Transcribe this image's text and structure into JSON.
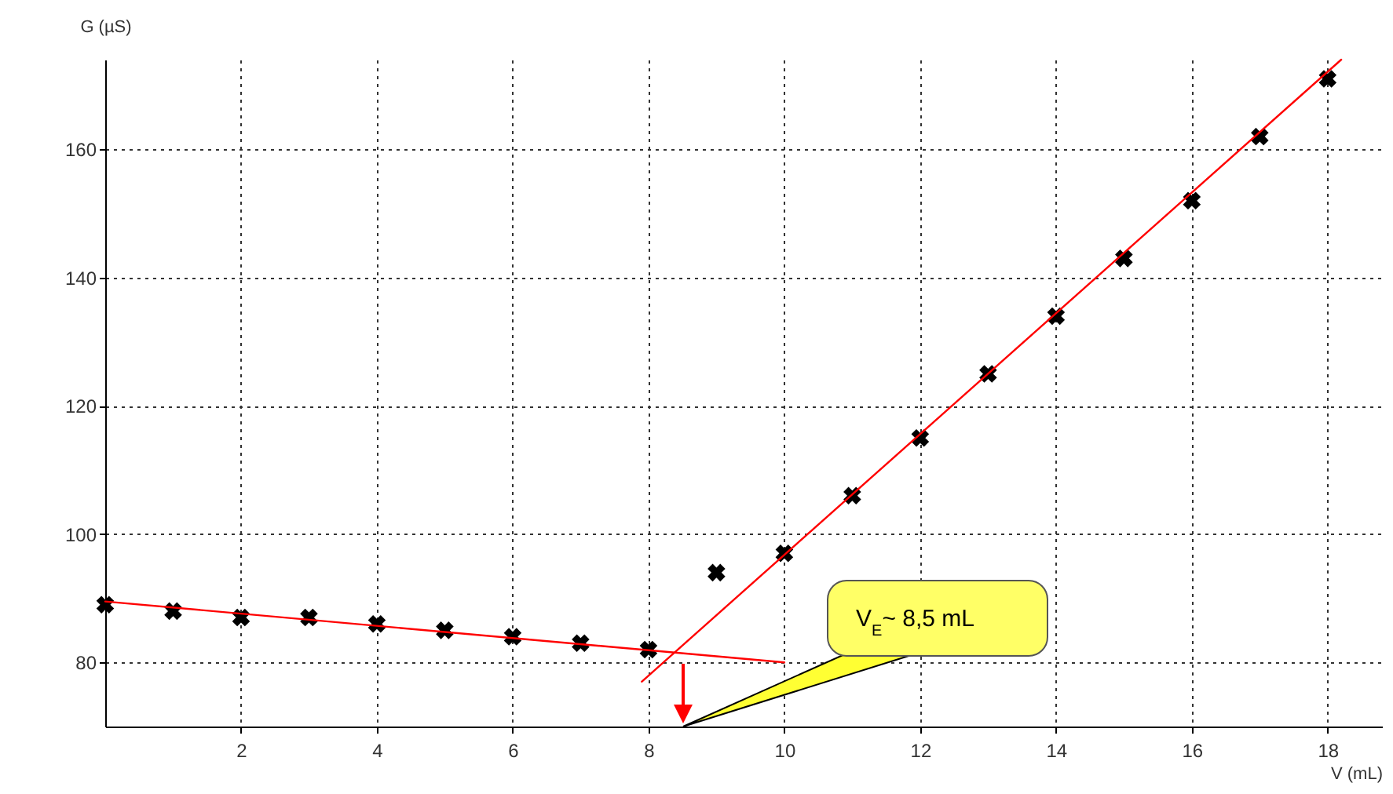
{
  "chart_data": {
    "type": "scatter",
    "xlabel": "V (mL)",
    "ylabel": "G (µS)",
    "xlim": [
      0,
      18.8
    ],
    "ylim": [
      70,
      174
    ],
    "xticks": [
      2,
      4,
      6,
      8,
      10,
      12,
      14,
      16,
      18
    ],
    "yticks": [
      80,
      100,
      120,
      140,
      160
    ],
    "grid": true,
    "series": [
      {
        "marker": "cross",
        "color": "#000000",
        "x": [
          0,
          1,
          2,
          3,
          4,
          5,
          6,
          7,
          8,
          9,
          10,
          11,
          12,
          13,
          14,
          15,
          16,
          17,
          18
        ],
        "values": [
          89,
          88,
          87,
          87,
          86,
          85,
          84,
          83,
          82,
          94,
          97,
          106,
          115,
          125,
          134,
          143,
          152,
          162,
          171
        ]
      },
      {
        "type": "line",
        "color": "#ff0000",
        "x": [
          0,
          10
        ],
        "values": [
          89.5,
          80
        ]
      },
      {
        "type": "line",
        "color": "#ff0000",
        "x": [
          7.9,
          18.2
        ],
        "values": [
          77,
          174
        ]
      }
    ],
    "annotations": [
      "V$_{E}$~ 8,5 mL"
    ]
  }
}
